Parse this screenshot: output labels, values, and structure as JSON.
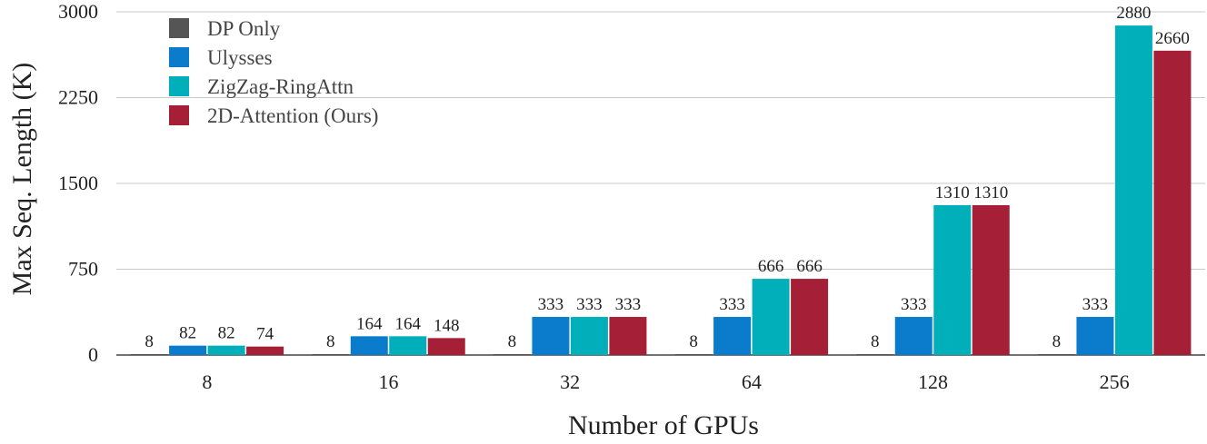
{
  "chart_data": {
    "type": "bar",
    "xlabel": "Number of GPUs",
    "ylabel": "Max Seq. Length (K)",
    "categories": [
      "8",
      "16",
      "32",
      "64",
      "128",
      "256"
    ],
    "ylim": [
      0,
      3000
    ],
    "yticks": [
      0,
      750,
      1500,
      2250,
      3000
    ],
    "grid": true,
    "legend_position": "top-left",
    "series": [
      {
        "name": "DP Only",
        "color": "#555555",
        "values": [
          8,
          8,
          8,
          8,
          8,
          8
        ],
        "labels": [
          "8",
          "8",
          "8",
          "8",
          "8",
          "8"
        ]
      },
      {
        "name": "Ulysses",
        "color": "#0A7CCB",
        "values": [
          82,
          164,
          333,
          333,
          333,
          333
        ],
        "labels": [
          "82",
          "164",
          "333",
          "333",
          "333",
          "333"
        ]
      },
      {
        "name": "ZigZag-RingAttn",
        "color": "#00AFB9",
        "values": [
          82,
          164,
          333,
          666,
          1310,
          2880
        ],
        "labels": [
          "82",
          "164",
          "333",
          "666",
          "1310",
          "2880"
        ]
      },
      {
        "name": "2D-Attention (Ours)",
        "color": "#A52036",
        "values": [
          74,
          148,
          333,
          666,
          1310,
          2660
        ],
        "labels": [
          "74",
          "148",
          "333",
          "666",
          "1310",
          "2660"
        ]
      }
    ]
  }
}
